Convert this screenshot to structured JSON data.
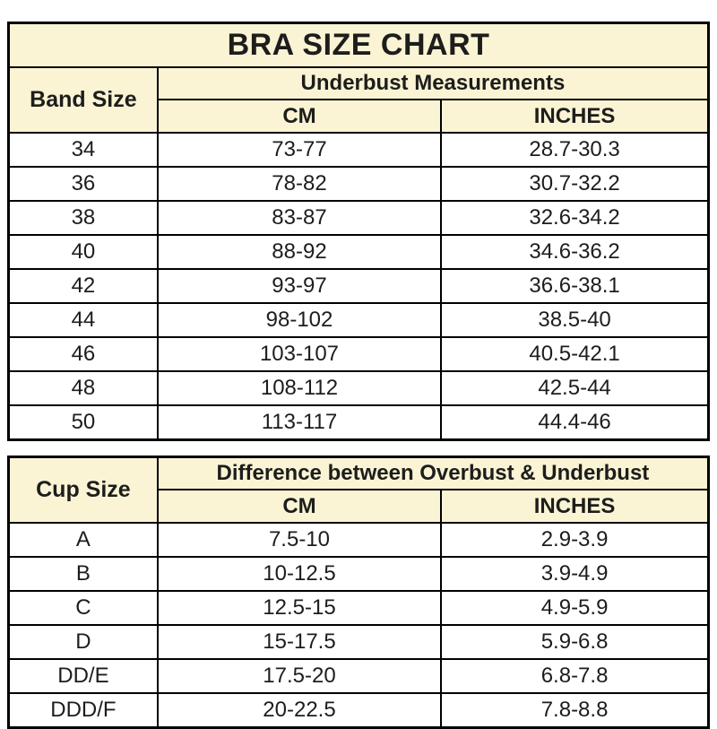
{
  "colors": {
    "header_background": "#faf4d5",
    "row_background": "#ffffff",
    "border": "#000000",
    "text": "#1d1d1b"
  },
  "chart_data": [
    {
      "type": "table",
      "title": "BRA SIZE CHART",
      "corner_header": "Band Size",
      "group_header": "Underbust Measurements",
      "sub_headers": [
        "CM",
        "INCHES"
      ],
      "columns": [
        "Band Size",
        "CM",
        "INCHES"
      ],
      "rows": [
        {
          "label": "34",
          "cm": "73-77",
          "inches": "28.7-30.3"
        },
        {
          "label": "36",
          "cm": "78-82",
          "inches": "30.7-32.2"
        },
        {
          "label": "38",
          "cm": "83-87",
          "inches": "32.6-34.2"
        },
        {
          "label": "40",
          "cm": "88-92",
          "inches": "34.6-36.2"
        },
        {
          "label": "42",
          "cm": "93-97",
          "inches": "36.6-38.1"
        },
        {
          "label": "44",
          "cm": "98-102",
          "inches": "38.5-40"
        },
        {
          "label": "46",
          "cm": "103-107",
          "inches": "40.5-42.1"
        },
        {
          "label": "48",
          "cm": "108-112",
          "inches": "42.5-44"
        },
        {
          "label": "50",
          "cm": "113-117",
          "inches": "44.4-46"
        }
      ]
    },
    {
      "type": "table",
      "title": "",
      "corner_header": "Cup Size",
      "group_header": "Difference between Overbust & Underbust",
      "sub_headers": [
        "CM",
        "INCHES"
      ],
      "columns": [
        "Cup Size",
        "CM",
        "INCHES"
      ],
      "rows": [
        {
          "label": "A",
          "cm": "7.5-10",
          "inches": "2.9-3.9"
        },
        {
          "label": "B",
          "cm": "10-12.5",
          "inches": "3.9-4.9"
        },
        {
          "label": "C",
          "cm": "12.5-15",
          "inches": "4.9-5.9"
        },
        {
          "label": "D",
          "cm": "15-17.5",
          "inches": "5.9-6.8"
        },
        {
          "label": "DD/E",
          "cm": "17.5-20",
          "inches": "6.8-7.8"
        },
        {
          "label": "DDD/F",
          "cm": "20-22.5",
          "inches": "7.8-8.8"
        }
      ]
    }
  ]
}
